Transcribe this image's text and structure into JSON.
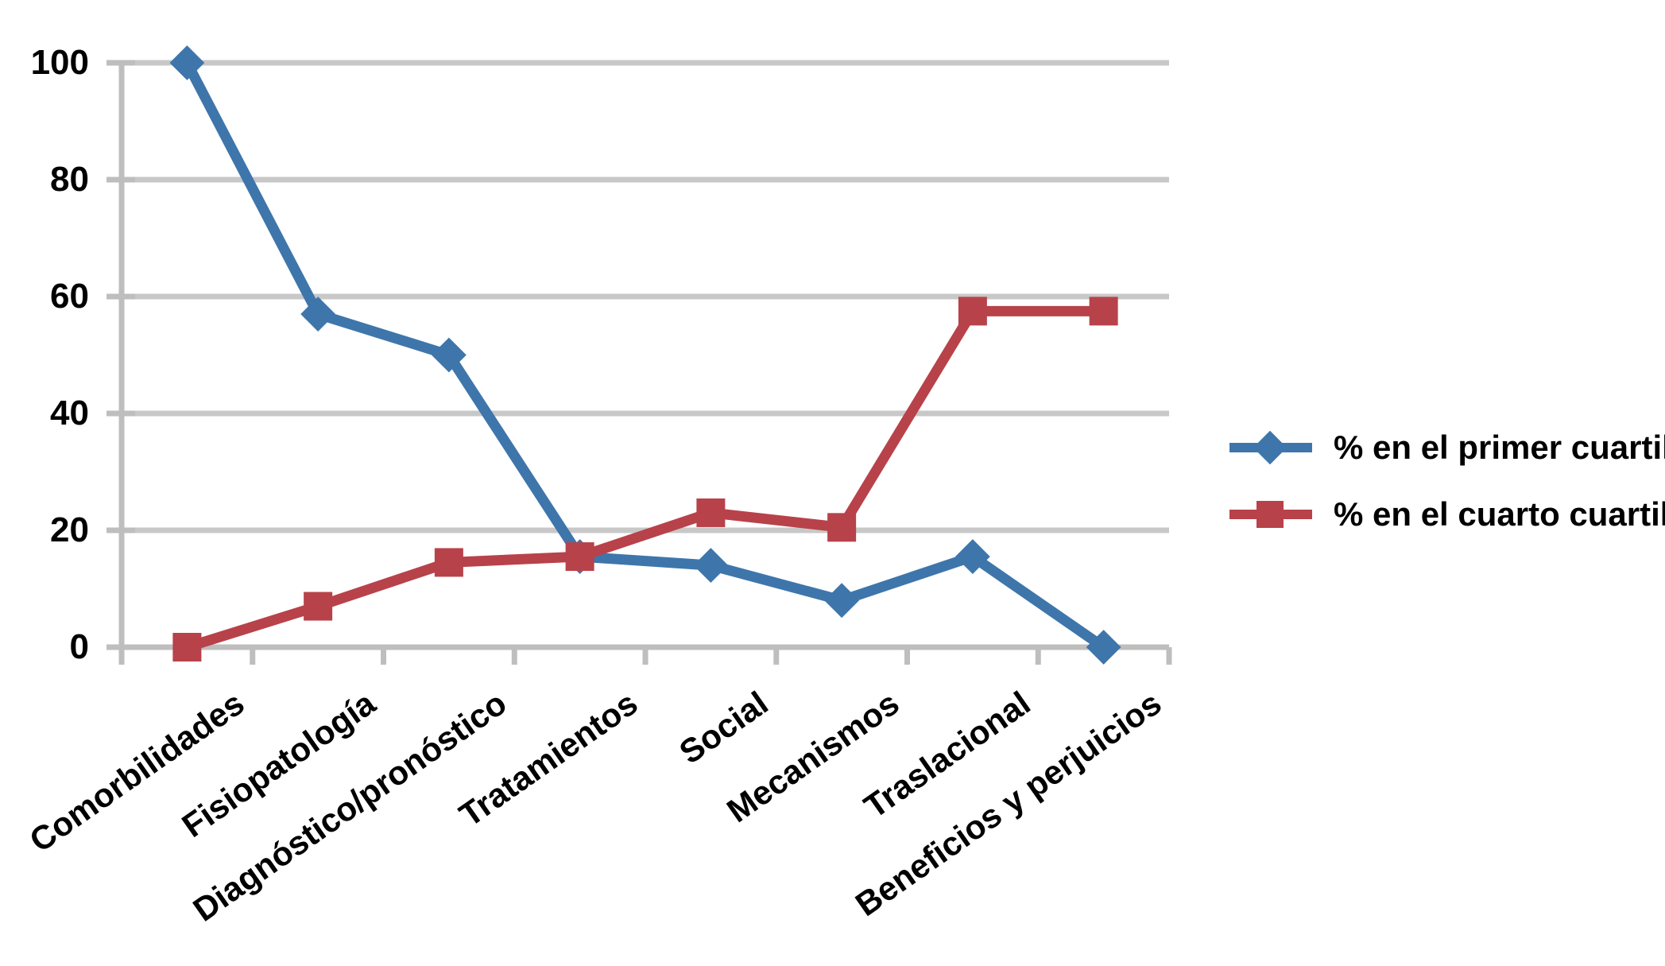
{
  "chart_data": {
    "type": "line",
    "categories": [
      "Comorbilidades",
      "Fisiopatología",
      "Diagnóstico/pronóstico",
      "Tratamientos",
      "Social",
      "Mecanismos",
      "Traslacional",
      "Beneficios y perjuicios"
    ],
    "series": [
      {
        "name": "% en el primer cuartil",
        "marker": "diamond",
        "color": "#3E76AB",
        "values": [
          100,
          57,
          50,
          15.5,
          14,
          8,
          15.5,
          0
        ]
      },
      {
        "name": "% en el cuarto cuartil",
        "marker": "square",
        "color": "#B8424A",
        "values": [
          0,
          7,
          14.5,
          15.5,
          23,
          20.5,
          57.5,
          57.5
        ]
      }
    ],
    "title": "",
    "xlabel": "",
    "ylabel": "",
    "ylim": [
      0,
      100
    ],
    "yticks": [
      0,
      20,
      40,
      60,
      80,
      100
    ],
    "grid": "horizontal",
    "gridline_color": "#C8C8C8",
    "axis_color": "#BEBEBE",
    "text_color": "#000000",
    "background": "#FFFFFF",
    "legend_position": "right"
  }
}
